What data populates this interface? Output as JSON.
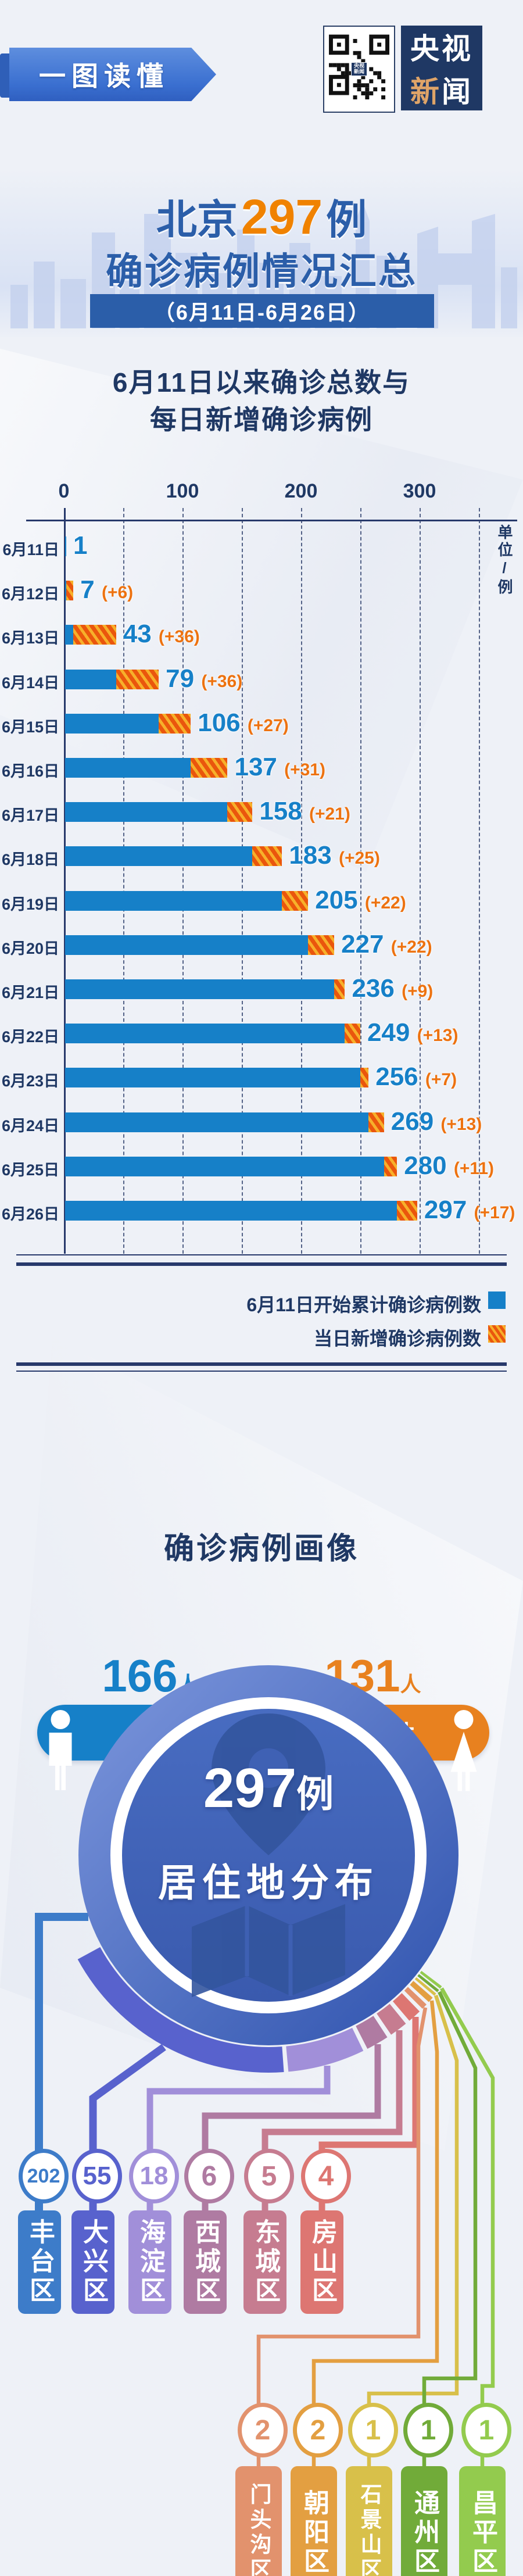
{
  "header": {
    "ribbon_label": "一图读懂",
    "qr_center_label": "央视新闻",
    "logo_line1": "央视",
    "logo_line2_colored": "新",
    "logo_line2_rest": "闻"
  },
  "title": {
    "prefix": "北京",
    "count": "297",
    "suffix": "例",
    "line2": "确诊病例情况汇总",
    "date_range": "（6月11日-6月26日）"
  },
  "chart_data": [
    {
      "type": "bar",
      "title": "6月11日以来确诊总数与每日新增确诊病例",
      "title_line1": "6月11日以来确诊总数与",
      "title_line2": "每日新增确诊病例",
      "unit_label": "单位/例",
      "x_ticks": [
        0,
        100,
        200,
        300
      ],
      "x_max": 350,
      "grid": "dashed vertical every 50",
      "legend": [
        "6月11日开始累计确诊病例数",
        "当日新增确诊病例数"
      ],
      "legend_position": "bottom-right",
      "rows": [
        {
          "date": "6月11日",
          "total": 1,
          "new": null
        },
        {
          "date": "6月12日",
          "total": 7,
          "new": 6
        },
        {
          "date": "6月13日",
          "total": 43,
          "new": 36
        },
        {
          "date": "6月14日",
          "total": 79,
          "new": 36
        },
        {
          "date": "6月15日",
          "total": 106,
          "new": 27
        },
        {
          "date": "6月16日",
          "total": 137,
          "new": 31
        },
        {
          "date": "6月17日",
          "total": 158,
          "new": 21
        },
        {
          "date": "6月18日",
          "total": 183,
          "new": 25
        },
        {
          "date": "6月19日",
          "total": 205,
          "new": 22
        },
        {
          "date": "6月20日",
          "total": 227,
          "new": 22
        },
        {
          "date": "6月21日",
          "total": 236,
          "new": 9
        },
        {
          "date": "6月22日",
          "total": 249,
          "new": 13
        },
        {
          "date": "6月23日",
          "total": 256,
          "new": 7
        },
        {
          "date": "6月24日",
          "total": 269,
          "new": 13
        },
        {
          "date": "6月25日",
          "total": 280,
          "new": 11
        },
        {
          "date": "6月26日",
          "total": 297,
          "new": 17
        }
      ]
    },
    {
      "type": "bar",
      "title": "确诊病例画像",
      "categories": [
        "男性",
        "女性"
      ],
      "values": [
        166,
        131
      ],
      "male": {
        "count": "166",
        "unit": "人",
        "label": "男性"
      },
      "female": {
        "count": "131",
        "unit": "人",
        "label": "女性"
      }
    },
    {
      "type": "pie",
      "title": "297例居住地分布",
      "center_count": "297",
      "center_unit": "例",
      "center_subtitle": "居住地分布",
      "total": 297,
      "districts": [
        {
          "name": "丰台区",
          "value": 202,
          "color": "#3d7cc9"
        },
        {
          "name": "大兴区",
          "value": 55,
          "color": "#5862cd"
        },
        {
          "name": "海淀区",
          "value": 18,
          "color": "#a18fd9"
        },
        {
          "name": "西城区",
          "value": 6,
          "color": "#af7ba2"
        },
        {
          "name": "东城区",
          "value": 5,
          "color": "#c67c90"
        },
        {
          "name": "房山区",
          "value": 4,
          "color": "#dd7672"
        },
        {
          "name": "门头沟区",
          "value": 2,
          "color": "#e2926d"
        },
        {
          "name": "朝阳区",
          "value": 2,
          "color": "#e39f41"
        },
        {
          "name": "石景山区",
          "value": 1,
          "color": "#d8c04a"
        },
        {
          "name": "通州区",
          "value": 1,
          "color": "#71ab39"
        },
        {
          "name": "昌平区",
          "value": 1,
          "color": "#93cb4e"
        }
      ]
    }
  ],
  "colors": {
    "navy_text": "#1f3864",
    "title_blue": "#2b5ea9",
    "accent_blue": "#1680c8",
    "accent_orange": "#ea560d",
    "stripe_yellow": "#f7b02a",
    "logo_gold": "#dfa468"
  }
}
